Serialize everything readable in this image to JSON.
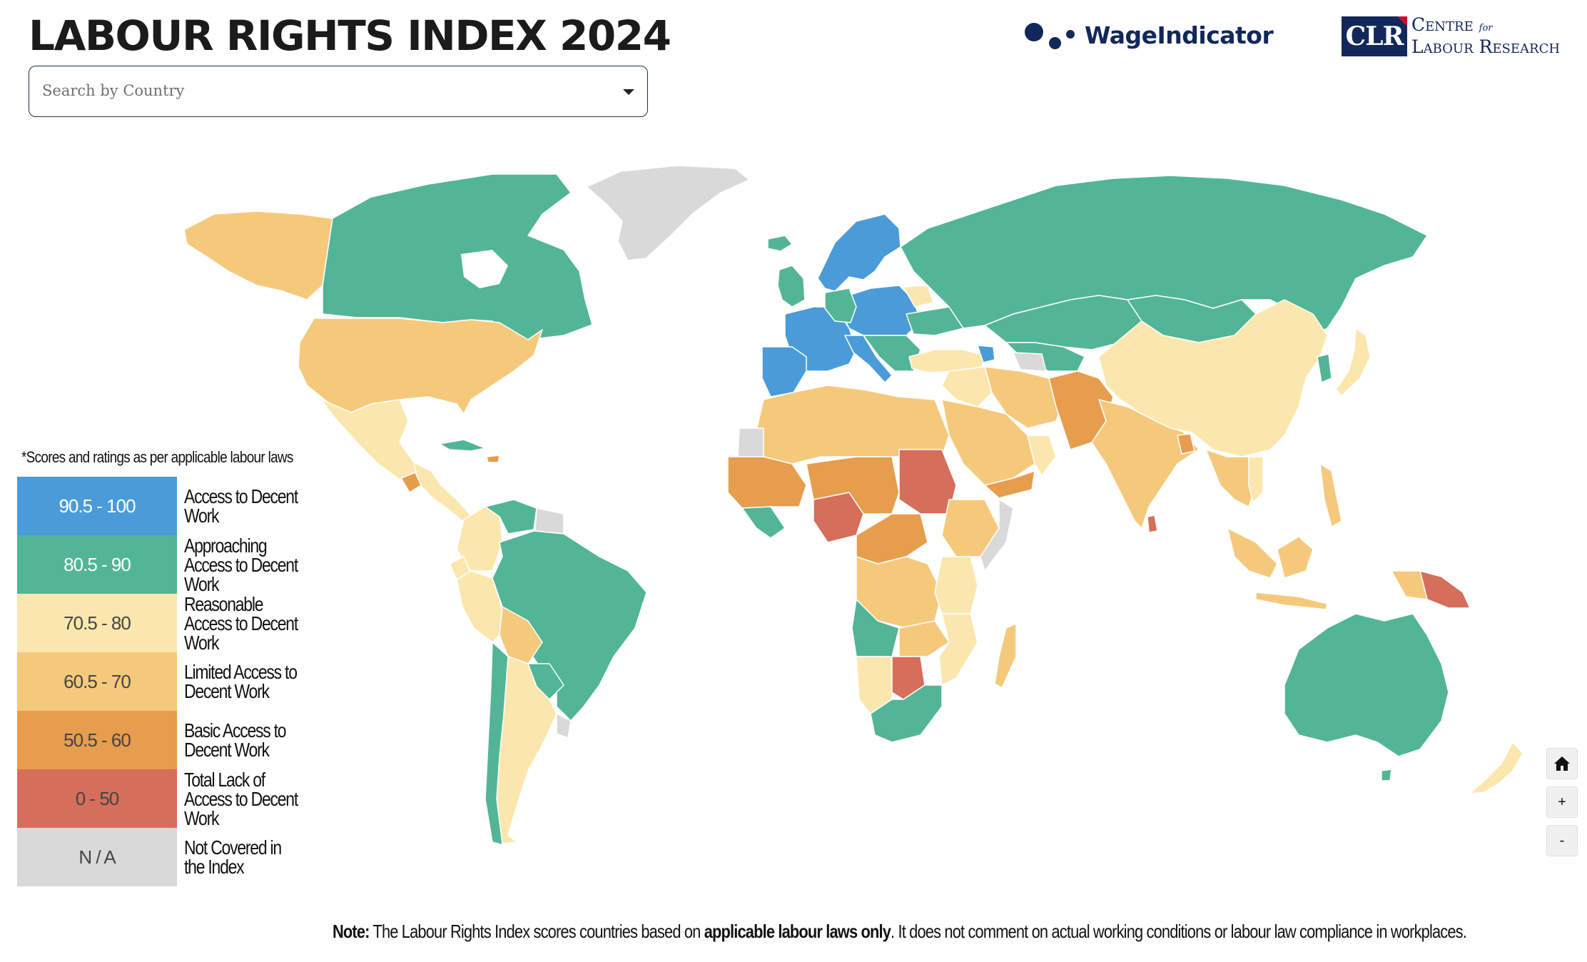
{
  "header": {
    "title": "LABOUR RIGHTS INDEX 2024",
    "search_placeholder": "Search by Country"
  },
  "logos": {
    "wageindicator": "WageIndicator",
    "clr_badge": "CLR",
    "clr_line1": "Centre",
    "clr_for": "for",
    "clr_line2": "Labour Research"
  },
  "legend": {
    "note": "*Scores and ratings as per applicable labour laws",
    "items": [
      {
        "range": "90.5 - 100",
        "label": "Access to Decent Work",
        "color": "#4a9bd8",
        "text_color": "#ffffff"
      },
      {
        "range": "80.5 - 90",
        "label": "Approaching Access to Decent Work",
        "color": "#52b596",
        "text_color": "#ffffff"
      },
      {
        "range": "70.5 - 80",
        "label": "Reasonable Access to Decent Work",
        "color": "#fbe7ad",
        "text_color": "#444444"
      },
      {
        "range": "60.5 - 70",
        "label": "Limited Access to Decent Work",
        "color": "#f5c97c",
        "text_color": "#444444"
      },
      {
        "range": "50.5 - 60",
        "label": "Basic Access to Decent Work",
        "color": "#e69d4e",
        "text_color": "#444444"
      },
      {
        "range": "0 - 50",
        "label": "Total Lack of Access to Decent Work",
        "color": "#d56e5b",
        "text_color": "#444444"
      },
      {
        "range": "N / A",
        "label": "Not Covered in the Index",
        "color": "#d9d9d9",
        "text_color": "#444444"
      }
    ]
  },
  "map_controls": {
    "home_icon": "house-icon",
    "zoom_in": "+",
    "zoom_out": "-"
  },
  "footer": {
    "note_label": "Note:",
    "note_text_1": " The Labour Rights Index scores countries based on ",
    "note_bold": "applicable labour laws only",
    "note_text_2": ". It does not comment on actual working conditions or labour law compliance in workplaces."
  }
}
